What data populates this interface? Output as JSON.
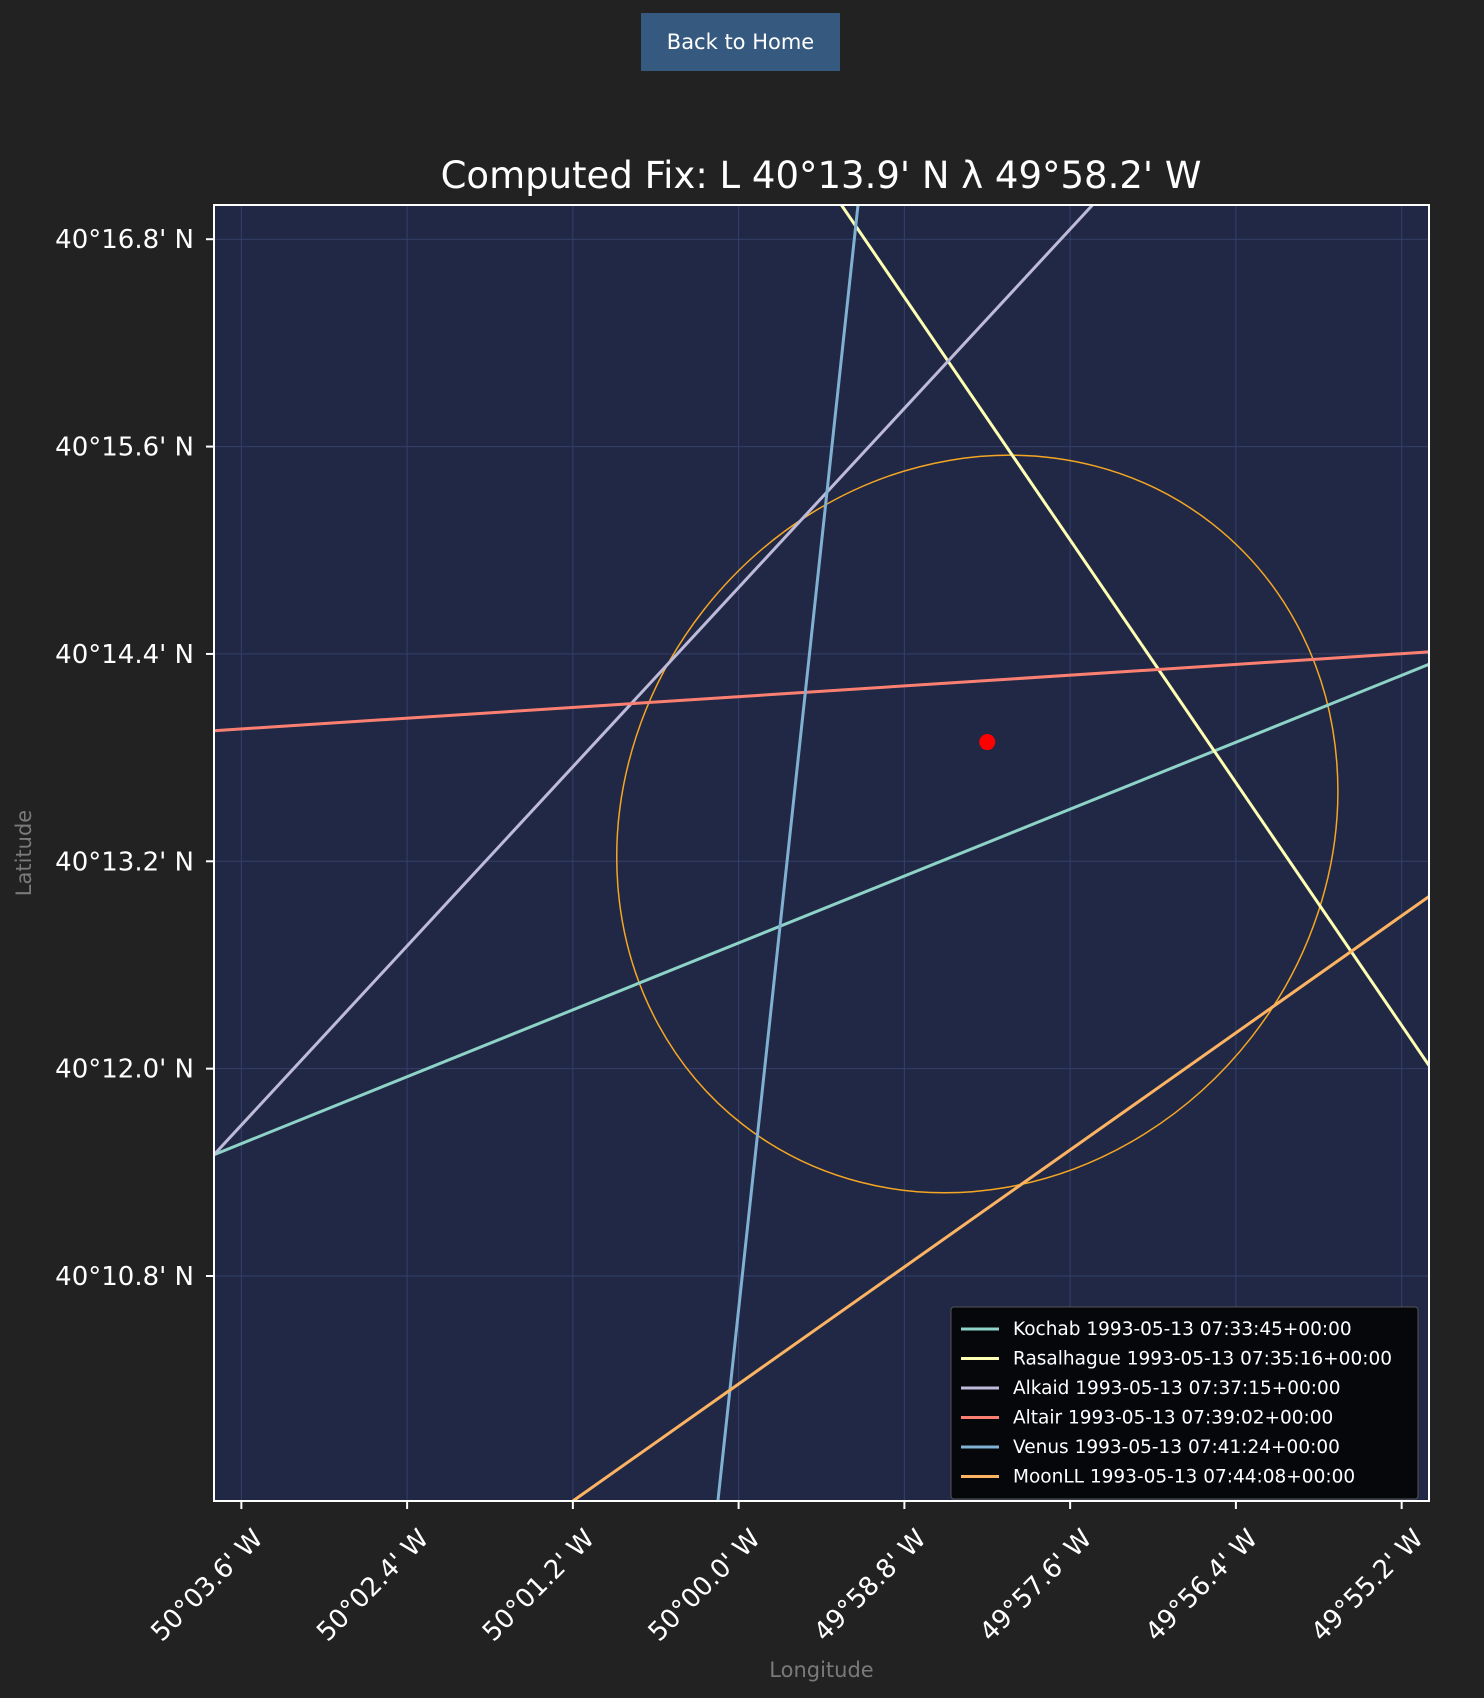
{
  "header": {
    "back_label": "Back to Home"
  },
  "chart_data": {
    "type": "line",
    "title": "Computed Fix: L 40°13.9' N λ 49°58.2' W",
    "xlabel": "Longitude",
    "ylabel": "Latitude",
    "grid": true,
    "legend_position": "lower-right",
    "xlim": [
      -50.0633,
      -49.9167
    ],
    "ylim": [
      40.1583,
      40.2833
    ],
    "x_ticks": [
      {
        "value": -50.06,
        "label": "50°03.6' W"
      },
      {
        "value": -50.04,
        "label": "50°02.4' W"
      },
      {
        "value": -50.02,
        "label": "50°01.2' W"
      },
      {
        "value": -50.0,
        "label": "50°00.0' W"
      },
      {
        "value": -49.98,
        "label": "49°58.8' W"
      },
      {
        "value": -49.96,
        "label": "49°57.6' W"
      },
      {
        "value": -49.94,
        "label": "49°56.4' W"
      },
      {
        "value": -49.92,
        "label": "49°55.2' W"
      }
    ],
    "y_ticks": [
      {
        "value": 40.28,
        "label": "40°16.8' N"
      },
      {
        "value": 40.26,
        "label": "40°15.6' N"
      },
      {
        "value": 40.24,
        "label": "40°14.4' N"
      },
      {
        "value": 40.22,
        "label": "40°13.2' N"
      },
      {
        "value": 40.2,
        "label": "40°12.0' N"
      },
      {
        "value": 40.18,
        "label": "40°10.8' N"
      }
    ],
    "series": [
      {
        "name": "Kochab 1993-05-13 07:33:45+00:00",
        "color": "#8dd3c7",
        "x": [
          -50.0633,
          -49.9167
        ],
        "y": [
          40.1917,
          40.239
        ]
      },
      {
        "name": "Rasalhague 1993-05-13 07:35:16+00:00",
        "color": "#ffffb3",
        "x": [
          -49.9876,
          -49.9167
        ],
        "y": [
          40.2833,
          40.2003
        ]
      },
      {
        "name": "Alkaid 1993-05-13 07:37:15+00:00",
        "color": "#bebada",
        "x": [
          -50.0633,
          -49.9573
        ],
        "y": [
          40.1917,
          40.2833
        ]
      },
      {
        "name": "Altair 1993-05-13 07:39:02+00:00",
        "color": "#fb8072",
        "x": [
          -50.0633,
          -49.9167
        ],
        "y": [
          40.2326,
          40.2402
        ]
      },
      {
        "name": "Venus 1993-05-13 07:41:24+00:00",
        "color": "#80b1d3",
        "x": [
          -50.0025,
          -49.9856
        ],
        "y": [
          40.1583,
          40.2833
        ]
      },
      {
        "name": "MoonLL 1993-05-13 07:44:08+00:00",
        "color": "#fdb462",
        "x": [
          -50.02,
          -49.9167
        ],
        "y": [
          40.1583,
          40.2166
        ]
      }
    ],
    "fix_point": {
      "x": -49.97,
      "y": 40.2315,
      "color": "#ff0000"
    },
    "error_ellipse": {
      "color": "#f5a623",
      "center_x": -49.9712,
      "center_y": 40.2236,
      "semi_major": 0.046,
      "semi_minor": 0.0335,
      "angle_deg": 52
    }
  }
}
